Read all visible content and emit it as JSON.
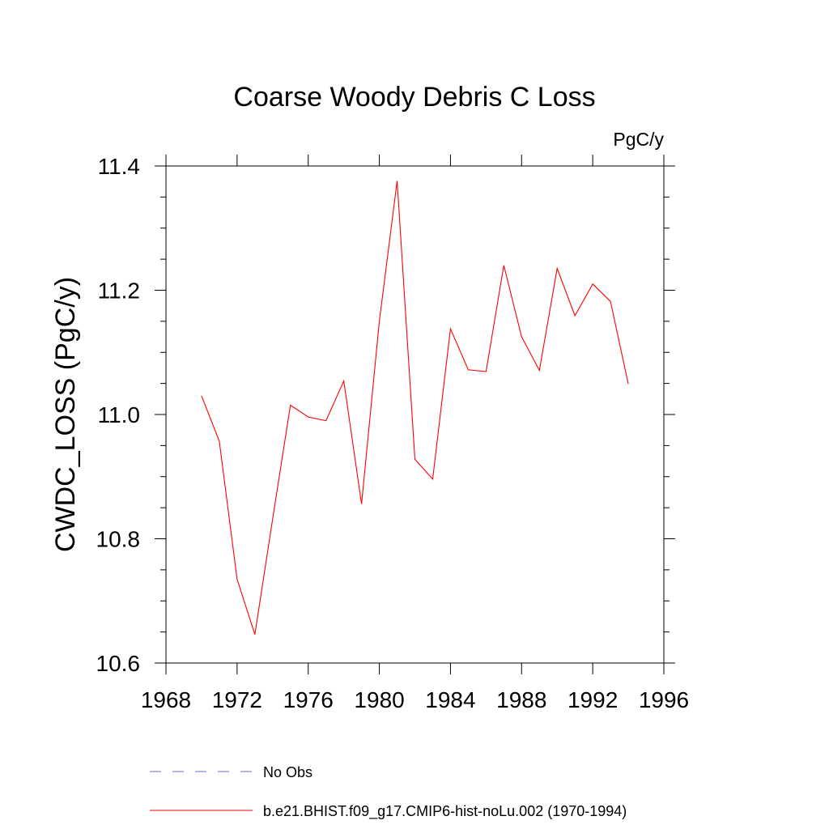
{
  "chart_data": {
    "type": "line",
    "title": "Coarse Woody Debris C Loss",
    "units_label": "PgC/y",
    "ylabel": "CWDC_LOSS  (PgC/y)",
    "xlabel": "",
    "xlim": [
      1968,
      1996
    ],
    "ylim": [
      10.6,
      11.4
    ],
    "x_ticks": [
      1968,
      1972,
      1976,
      1980,
      1984,
      1988,
      1992,
      1996
    ],
    "x_tick_labels": [
      "1968",
      "1972",
      "1976",
      "1980",
      "1984",
      "1988",
      "1992",
      "1996"
    ],
    "y_ticks": [
      10.6,
      10.8,
      11.0,
      11.2,
      11.4
    ],
    "y_tick_labels": [
      "10.6",
      "10.8",
      "11.0",
      "11.2",
      "11.4"
    ],
    "grid": false,
    "legend_position": "bottom",
    "legend": [
      {
        "label": "No Obs",
        "color": "#6a6acd",
        "style": "dashed"
      },
      {
        "label": "b.e21.BHIST.f09_g17.CMIP6-hist-noLu.002 (1970-1994)",
        "color": "#ff0000",
        "style": "solid"
      }
    ],
    "series": [
      {
        "name": "b.e21.BHIST.f09_g17.CMIP6-hist-noLu.002 (1970-1994)",
        "color": "#ff0000",
        "x": [
          1970,
          1971,
          1972,
          1973,
          1974,
          1975,
          1976,
          1977,
          1978,
          1979,
          1980,
          1981,
          1982,
          1983,
          1984,
          1985,
          1986,
          1987,
          1988,
          1989,
          1990,
          1991,
          1992,
          1993,
          1994
        ],
        "values": [
          11.03,
          10.957,
          10.735,
          10.646,
          10.832,
          11.015,
          10.996,
          10.99,
          11.054,
          10.856,
          11.15,
          11.376,
          10.928,
          10.896,
          11.138,
          11.072,
          11.069,
          11.24,
          11.125,
          11.071,
          11.235,
          11.159,
          11.21,
          11.182,
          11.049
        ]
      }
    ]
  }
}
